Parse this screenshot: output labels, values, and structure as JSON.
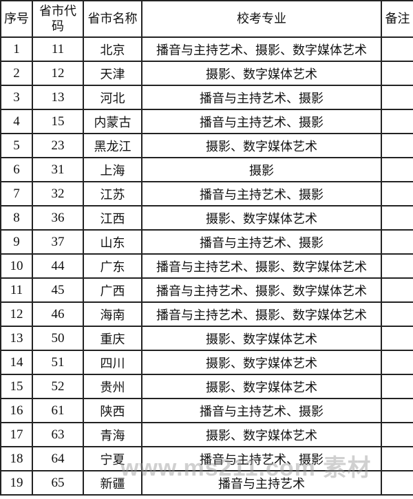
{
  "headers": [
    "序号",
    "省市代码",
    "省市名称",
    "校考专业",
    "备注"
  ],
  "rows": [
    {
      "no": "1",
      "code": "11",
      "name": "北京",
      "major": "播音与主持艺术、摄影、数字媒体艺术",
      "note": ""
    },
    {
      "no": "2",
      "code": "12",
      "name": "天津",
      "major": "摄影、数字媒体艺术",
      "note": ""
    },
    {
      "no": "3",
      "code": "13",
      "name": "河北",
      "major": "播音与主持艺术、摄影",
      "note": ""
    },
    {
      "no": "4",
      "code": "15",
      "name": "内蒙古",
      "major": "播音与主持艺术、摄影",
      "note": ""
    },
    {
      "no": "5",
      "code": "23",
      "name": "黑龙江",
      "major": "摄影、数字媒体艺术",
      "note": ""
    },
    {
      "no": "6",
      "code": "31",
      "name": "上海",
      "major": "摄影",
      "note": ""
    },
    {
      "no": "7",
      "code": "32",
      "name": "江苏",
      "major": "播音与主持艺术、摄影",
      "note": ""
    },
    {
      "no": "8",
      "code": "36",
      "name": "江西",
      "major": "摄影、数字媒体艺术",
      "note": ""
    },
    {
      "no": "9",
      "code": "37",
      "name": "山东",
      "major": "播音与主持艺术、摄影",
      "note": ""
    },
    {
      "no": "10",
      "code": "44",
      "name": "广东",
      "major": "播音与主持艺术、摄影、数字媒体艺术",
      "note": ""
    },
    {
      "no": "11",
      "code": "45",
      "name": "广西",
      "major": "播音与主持艺术、摄影、数字媒体艺术",
      "note": ""
    },
    {
      "no": "12",
      "code": "46",
      "name": "海南",
      "major": "播音与主持艺术、摄影、数字媒体艺术",
      "note": ""
    },
    {
      "no": "13",
      "code": "50",
      "name": "重庆",
      "major": "摄影、数字媒体艺术",
      "note": ""
    },
    {
      "no": "14",
      "code": "51",
      "name": "四川",
      "major": "摄影、数字媒体艺术",
      "note": ""
    },
    {
      "no": "15",
      "code": "52",
      "name": "贵州",
      "major": "摄影、数字媒体艺术",
      "note": ""
    },
    {
      "no": "16",
      "code": "61",
      "name": "陕西",
      "major": "播音与主持艺术、摄影",
      "note": ""
    },
    {
      "no": "17",
      "code": "63",
      "name": "青海",
      "major": "摄影、数字媒体艺术",
      "note": ""
    },
    {
      "no": "18",
      "code": "64",
      "name": "宁夏",
      "major": "播音与主持艺术、摄影",
      "note": ""
    },
    {
      "no": "19",
      "code": "65",
      "name": "新疆",
      "major": "播音与主持艺术",
      "note": ""
    }
  ],
  "watermark": "www.ms211.com 素材"
}
